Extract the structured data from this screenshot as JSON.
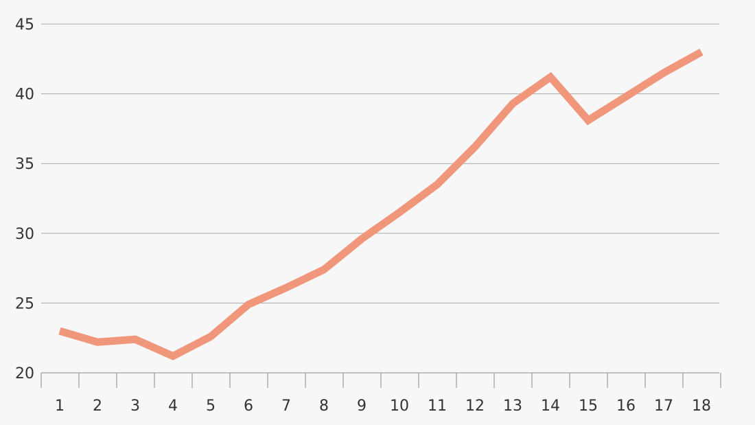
{
  "chart_data": {
    "type": "line",
    "title": "",
    "xlabel": "",
    "ylabel": "",
    "x": [
      1,
      2,
      3,
      4,
      5,
      6,
      7,
      8,
      9,
      10,
      11,
      12,
      13,
      14,
      15,
      16,
      17,
      18
    ],
    "x_tick_labels": [
      "1",
      "2",
      "3",
      "4",
      "5",
      "6",
      "7",
      "8",
      "9",
      "10",
      "11",
      "12",
      "13",
      "14",
      "15",
      "16",
      "17",
      "18"
    ],
    "ylim": [
      20,
      45
    ],
    "y_ticks": [
      20,
      25,
      30,
      35,
      40,
      45
    ],
    "y_tick_labels": [
      "20",
      "25",
      "30",
      "35",
      "40",
      "45"
    ],
    "grid": "horizontal",
    "legend": "none",
    "series": [
      {
        "values": [
          23.0,
          22.2,
          22.4,
          21.2,
          22.6,
          24.9,
          26.1,
          27.4,
          29.6,
          31.5,
          33.5,
          36.2,
          39.3,
          41.2,
          38.1,
          39.8,
          41.5,
          43.0
        ],
        "color": "#f0967a"
      }
    ],
    "colors": {
      "background": "#f7f7f7",
      "grid": "#a8a8a8",
      "axis": "#888888",
      "text": "#333333"
    }
  }
}
